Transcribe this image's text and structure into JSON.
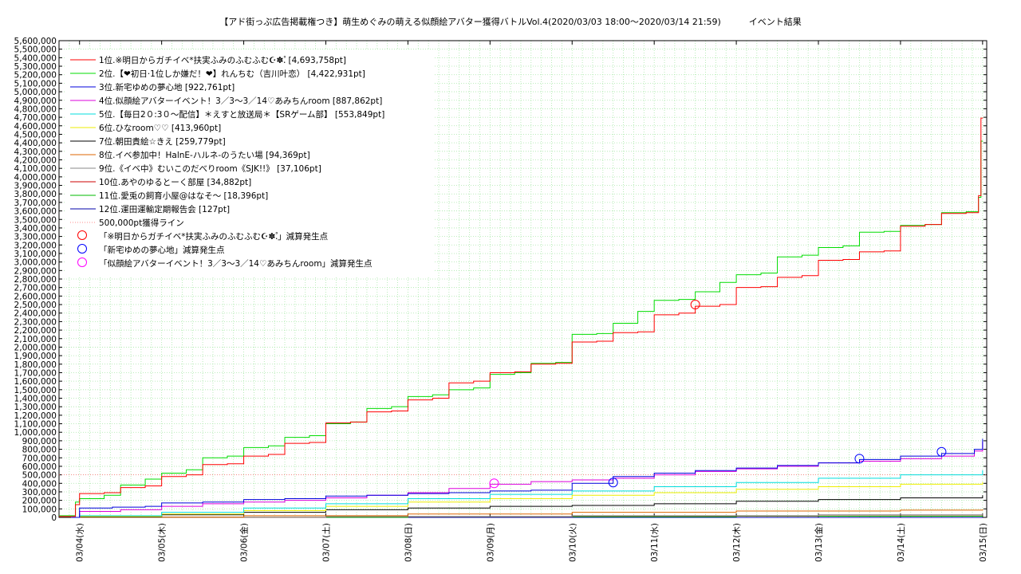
{
  "chart_data": {
    "type": "line",
    "title": "【アド街っぷ広告掲載権つき】萌生めぐみの萌える似顔絵アバター獲得バトルVol.4(2020/03/03 18:00〜2020/03/14 21:59)          イベント結果",
    "xlabel": "",
    "ylabel": "",
    "ylim": [
      0,
      5600000
    ],
    "ytick_step": 100000,
    "x_ticks": [
      "03/04(水)",
      "03/05(木)",
      "03/06(金)",
      "03/07(土)",
      "03/08(日)",
      "03/09(月)",
      "03/10(火)",
      "03/11(水)",
      "03/12(木)",
      "03/13(金)",
      "03/14(土)",
      "03/15(日)"
    ],
    "x_unit": "days since 03/04 00:00",
    "xlim": [
      -0.25,
      11.05
    ],
    "grid": true,
    "legend_position": "top-left",
    "series": [
      {
        "name": "1位.※明日からガチイベ*扶実ふみのふむふむ☪✽.゚ [4,693,758pt]",
        "color": "#ff0000",
        "x": [
          -0.25,
          -0.05,
          0,
          0.3,
          0.5,
          0.8,
          1.0,
          1.3,
          1.5,
          1.8,
          2.0,
          2.3,
          2.5,
          2.8,
          3.0,
          3.3,
          3.5,
          3.8,
          4.0,
          4.3,
          4.5,
          4.8,
          5.0,
          5.3,
          5.5,
          5.8,
          6.0,
          6.3,
          6.5,
          6.8,
          7.0,
          7.3,
          7.5,
          7.8,
          8.0,
          8.3,
          8.5,
          8.8,
          9.0,
          9.3,
          9.5,
          9.8,
          10.0,
          10.3,
          10.5,
          10.8,
          10.95,
          10.98,
          11.0
        ],
        "y": [
          10000,
          150000,
          280000,
          290000,
          350000,
          370000,
          480000,
          500000,
          620000,
          630000,
          720000,
          740000,
          870000,
          880000,
          1110000,
          1120000,
          1240000,
          1250000,
          1380000,
          1400000,
          1580000,
          1600000,
          1700000,
          1710000,
          1800000,
          1810000,
          2060000,
          2070000,
          2170000,
          2180000,
          2380000,
          2400000,
          2480000,
          2500000,
          2700000,
          2710000,
          2820000,
          2840000,
          3020000,
          3030000,
          3120000,
          3130000,
          3420000,
          3440000,
          3570000,
          3580000,
          3780000,
          4690000,
          4693758
        ]
      },
      {
        "name": "2位.【❤初日·1位しか嫌だ！❤】れんちむ（吉川叶恋） [4,422,931pt]",
        "color": "#00dd00",
        "x": [
          -0.25,
          -0.05,
          0,
          0.3,
          0.5,
          0.8,
          1.0,
          1.3,
          1.5,
          1.8,
          2.0,
          2.3,
          2.5,
          2.8,
          3.0,
          3.3,
          3.5,
          3.8,
          4.0,
          4.3,
          4.5,
          4.8,
          5.0,
          5.3,
          5.5,
          5.8,
          6.0,
          6.3,
          6.5,
          6.8,
          7.0,
          7.3,
          7.5,
          7.8,
          8.0,
          8.3,
          8.5,
          8.8,
          9.0,
          9.3,
          9.5,
          9.8,
          10.0,
          10.3,
          10.5,
          10.8,
          10.95,
          10.98,
          11.0
        ],
        "y": [
          20000,
          180000,
          220000,
          260000,
          380000,
          450000,
          520000,
          560000,
          700000,
          720000,
          820000,
          840000,
          940000,
          960000,
          1100000,
          1120000,
          1280000,
          1300000,
          1420000,
          1440000,
          1500000,
          1520000,
          1680000,
          1700000,
          1810000,
          1820000,
          2150000,
          2160000,
          2280000,
          2420000,
          2550000,
          2560000,
          2650000,
          2760000,
          2850000,
          2870000,
          3060000,
          3080000,
          3170000,
          3190000,
          3350000,
          3360000,
          3430000,
          3440000,
          3580000,
          3590000,
          3760000,
          4420000,
          4422931
        ]
      },
      {
        "name": "3位.新宅ゆめの夢心地 [922,761pt]",
        "color": "#0000dd",
        "x": [
          -0.1,
          0,
          0.4,
          0.8,
          1.0,
          1.5,
          2.0,
          2.5,
          3.0,
          3.5,
          4.0,
          4.5,
          5.0,
          5.5,
          6.0,
          6.5,
          7.0,
          7.5,
          8.0,
          8.5,
          9.0,
          9.5,
          10.0,
          10.5,
          10.9,
          11.0
        ],
        "y": [
          0,
          110000,
          120000,
          130000,
          170000,
          180000,
          210000,
          220000,
          250000,
          260000,
          280000,
          290000,
          310000,
          320000,
          400000,
          480000,
          520000,
          550000,
          580000,
          610000,
          640000,
          680000,
          720000,
          750000,
          800000,
          922761
        ]
      },
      {
        "name": "4位.似顔絵アバターイベント！3／3〜3／14♡あみちんroom [887,862pt]",
        "color": "#dd00dd",
        "x": [
          -0.1,
          0,
          0.5,
          1.0,
          1.5,
          2.0,
          2.5,
          3.0,
          3.5,
          4.0,
          4.5,
          5.0,
          5.5,
          6.0,
          6.5,
          7.0,
          7.5,
          8.0,
          8.5,
          9.0,
          9.5,
          10.0,
          10.5,
          10.9,
          11.0
        ],
        "y": [
          0,
          70000,
          90000,
          130000,
          160000,
          180000,
          200000,
          230000,
          260000,
          290000,
          340000,
          390000,
          420000,
          440000,
          460000,
          500000,
          540000,
          570000,
          600000,
          640000,
          660000,
          690000,
          720000,
          780000,
          887862
        ]
      },
      {
        "name": "5位.【毎日2０:3０〜配信】＊えすと放送局＊【SRゲーム部】 [553,849pt]",
        "color": "#00dddd",
        "x": [
          -0.1,
          0,
          1.0,
          2.0,
          3.0,
          4.0,
          5.0,
          6.0,
          7.0,
          8.0,
          9.0,
          10.0,
          11.0
        ],
        "y": [
          0,
          20000,
          60000,
          110000,
          160000,
          220000,
          270000,
          310000,
          360000,
          410000,
          460000,
          500000,
          553849
        ]
      },
      {
        "name": "6位.ひなroom♡♡ [413,960pt]",
        "color": "#eeee00",
        "x": [
          -0.1,
          0,
          1.0,
          2.0,
          3.0,
          4.0,
          5.0,
          6.0,
          7.0,
          8.0,
          9.0,
          10.0,
          11.0
        ],
        "y": [
          0,
          10000,
          40000,
          80000,
          130000,
          180000,
          220000,
          260000,
          290000,
          330000,
          360000,
          390000,
          413960
        ]
      },
      {
        "name": "7位.朝田貴絵☆きえ [259,779pt]",
        "color": "#000000",
        "x": [
          -0.1,
          0,
          1.0,
          2.0,
          3.0,
          4.0,
          5.0,
          6.0,
          7.0,
          8.0,
          9.0,
          10.0,
          11.0
        ],
        "y": [
          0,
          5000,
          30000,
          60000,
          90000,
          110000,
          130000,
          140000,
          160000,
          190000,
          210000,
          230000,
          259779
        ]
      },
      {
        "name": "8位.イベ参加中！HalnE-ハルネ-のうたい場 [94,369pt]",
        "color": "#dd6600",
        "x": [
          -0.1,
          0,
          2.0,
          4.0,
          6.0,
          8.0,
          10.0,
          11.0
        ],
        "y": [
          0,
          2000,
          20000,
          40000,
          60000,
          75000,
          85000,
          94369
        ]
      },
      {
        "name": "9位.《イベ中》むいこのだべりroom《SJK!!》 [37,106pt]",
        "color": "#888888",
        "x": [
          -0.1,
          0,
          3.0,
          6.0,
          9.0,
          11.0
        ],
        "y": [
          0,
          1000,
          10000,
          20000,
          30000,
          37106
        ]
      },
      {
        "name": "10位.あやのゆるとーく部屋 [34,882pt]",
        "color": "#cc0000",
        "x": [
          -0.1,
          0,
          3.0,
          6.0,
          9.0,
          11.0
        ],
        "y": [
          0,
          1000,
          9000,
          18000,
          28000,
          34882
        ]
      },
      {
        "name": "11位.愛兎の飼育小屋@はなそ〜 [18,396pt]",
        "color": "#00bb00",
        "x": [
          -0.1,
          0,
          4.0,
          8.0,
          11.0
        ],
        "y": [
          0,
          1000,
          8000,
          14000,
          18396
        ]
      },
      {
        "name": "12位.運田運輸定期報告会 [127pt]",
        "color": "#0000aa",
        "x": [
          -0.1,
          11.0
        ],
        "y": [
          0,
          127
        ]
      }
    ],
    "reference_line": {
      "name": "500,000pt獲得ライン",
      "value": 500000,
      "color": "#ff6666"
    },
    "markers": [
      {
        "name": "「※明日からガチイベ*扶実ふみのふむふむ☪✽.゚」減算発生点",
        "color": "#ff0000",
        "points": [
          {
            "x": 7.5,
            "y": 2500000
          }
        ]
      },
      {
        "name": "「新宅ゆめの夢心地」減算発生点",
        "color": "#0000ff",
        "points": [
          {
            "x": 6.5,
            "y": 410000
          },
          {
            "x": 9.5,
            "y": 690000
          },
          {
            "x": 10.5,
            "y": 770000
          }
        ]
      },
      {
        "name": "「似顔絵アバターイベント！3／3〜3／14♡あみちんroom」減算発生点",
        "color": "#ff00ff",
        "points": [
          {
            "x": 5.05,
            "y": 400000
          }
        ]
      }
    ]
  }
}
